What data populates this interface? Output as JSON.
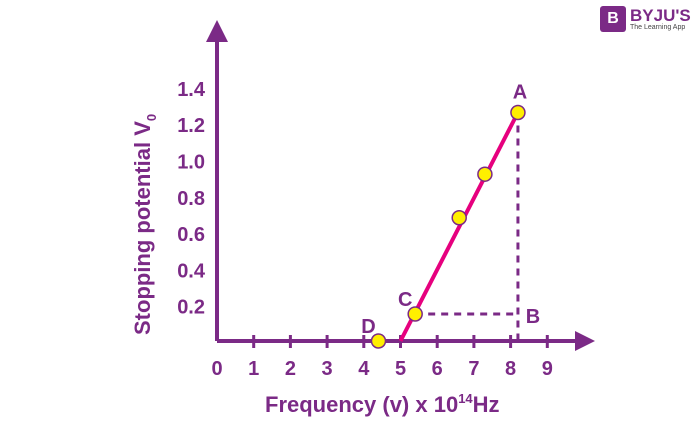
{
  "chart_data": {
    "type": "line",
    "xlabel": "Frequency (v) x 10",
    "xlabel_sup": "14",
    "xlabel_unit": "Hz",
    "ylabel": "Stopping potential V",
    "ylabel_sub": "0",
    "x_ticks": [
      "0",
      "1",
      "2",
      "3",
      "4",
      "5",
      "6",
      "7",
      "8",
      "9"
    ],
    "y_ticks": [
      "0.2",
      "0.4",
      "0.6",
      "0.8",
      "1.0",
      "1.2",
      "1.4"
    ],
    "xlim": [
      0,
      9.5
    ],
    "ylim": [
      0,
      1.5
    ],
    "grid": false,
    "line": {
      "x": [
        5.0,
        8.2
      ],
      "y": [
        0,
        1.27
      ],
      "color": "#e6007e"
    },
    "points": [
      {
        "label": "D",
        "x": 4.4,
        "y": 0
      },
      {
        "label": "C",
        "x": 5.4,
        "y": 0.16
      },
      {
        "label": "",
        "x": 6.6,
        "y": 0.69
      },
      {
        "label": "",
        "x": 7.3,
        "y": 0.93
      },
      {
        "label": "A",
        "x": 8.2,
        "y": 1.27
      }
    ],
    "point_color": "#ffef00",
    "axis_color": "#7b2a86",
    "guide_points": {
      "B_label": "B",
      "B": {
        "x": 8.2,
        "y": 0.16
      }
    }
  },
  "logo": {
    "name": "BYJU'S",
    "tagline": "The Learning App",
    "mark": "B"
  }
}
